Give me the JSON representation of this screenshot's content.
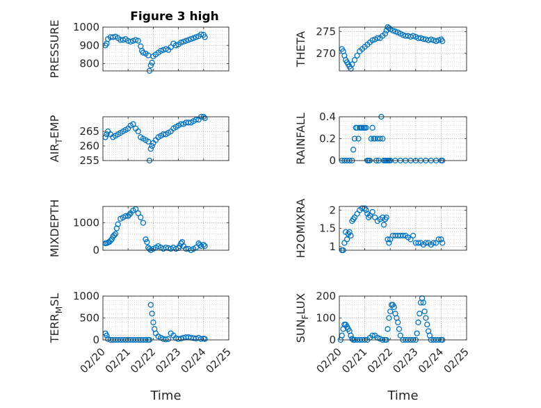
{
  "figure": {
    "title": "Figure 3 high",
    "xlabel": "Time"
  },
  "colors": {
    "marker": "#0072BD",
    "grid": "#b4b4b4",
    "axis": "#262626"
  },
  "chart_data": [
    {
      "type": "scatter",
      "ylabel": "PRESSURE",
      "title": "Figure 3 high",
      "xlim": [
        20,
        25
      ],
      "ylim": [
        760,
        1000
      ],
      "yticks": [
        800,
        900,
        1000
      ],
      "xticks": [
        20,
        21,
        22,
        23,
        24,
        25
      ],
      "xticklabels": [
        "02/20",
        "02/21",
        "02/22",
        "02/23",
        "02/24",
        "02/25"
      ],
      "x": [
        20.1,
        20.15,
        20.2,
        20.3,
        20.4,
        20.5,
        20.6,
        20.7,
        20.8,
        20.9,
        21.0,
        21.1,
        21.2,
        21.3,
        21.4,
        21.5,
        21.55,
        21.6,
        21.7,
        21.8,
        21.85,
        21.9,
        21.95,
        22.0,
        22.1,
        22.2,
        22.3,
        22.4,
        22.5,
        22.6,
        22.7,
        22.8,
        22.9,
        23.0,
        23.1,
        23.2,
        23.3,
        23.4,
        23.5,
        23.6,
        23.7,
        23.8,
        23.9,
        24.0,
        24.05
      ],
      "y": [
        900,
        910,
        935,
        945,
        945,
        948,
        940,
        930,
        930,
        935,
        925,
        920,
        925,
        930,
        925,
        895,
        870,
        860,
        855,
        845,
        760,
        790,
        805,
        840,
        850,
        860,
        870,
        875,
        880,
        875,
        890,
        910,
        900,
        905,
        915,
        920,
        925,
        930,
        935,
        940,
        945,
        950,
        960,
        958,
        945
      ]
    },
    {
      "type": "scatter",
      "ylabel": "THETA",
      "xlim": [
        20,
        25
      ],
      "ylim": [
        266,
        276
      ],
      "yticks": [
        270,
        275
      ],
      "xticks": [
        20,
        21,
        22,
        23,
        24,
        25
      ],
      "xticklabels": [
        "02/20",
        "02/21",
        "02/22",
        "02/23",
        "02/24",
        "02/25"
      ],
      "x": [
        20.1,
        20.15,
        20.2,
        20.25,
        20.3,
        20.35,
        20.4,
        20.45,
        20.5,
        20.6,
        20.7,
        20.8,
        20.9,
        21.0,
        21.1,
        21.2,
        21.3,
        21.4,
        21.5,
        21.6,
        21.7,
        21.8,
        21.85,
        21.9,
        21.95,
        22.0,
        22.1,
        22.2,
        22.3,
        22.4,
        22.5,
        22.6,
        22.7,
        22.8,
        22.9,
        23.0,
        23.1,
        23.2,
        23.3,
        23.4,
        23.5,
        23.6,
        23.7,
        23.8,
        23.9,
        24.0,
        24.05
      ],
      "y": [
        271,
        270.5,
        269.5,
        268.5,
        268,
        267.5,
        267,
        266.5,
        267.5,
        268.5,
        269.5,
        270.5,
        271,
        271.5,
        272,
        272.5,
        273,
        273.2,
        273.5,
        273.5,
        274,
        274.5,
        275.2,
        276,
        275.8,
        275.5,
        275.2,
        275,
        274.8,
        274.5,
        274.2,
        274,
        274,
        273.8,
        274,
        273.8,
        273.5,
        273.5,
        273.3,
        273.2,
        273,
        273.2,
        273,
        272.8,
        273,
        273.2,
        272.8
      ]
    },
    {
      "type": "scatter",
      "ylabel": "AIR_TEMP",
      "xlim": [
        20,
        25
      ],
      "ylim": [
        255,
        270
      ],
      "yticks": [
        255,
        260,
        265
      ],
      "xticks": [
        20,
        21,
        22,
        23,
        24,
        25
      ],
      "xticklabels": [
        "02/20",
        "02/21",
        "02/22",
        "02/23",
        "02/24",
        "02/25"
      ],
      "x": [
        20.1,
        20.15,
        20.2,
        20.3,
        20.4,
        20.5,
        20.6,
        20.7,
        20.8,
        20.9,
        21.0,
        21.1,
        21.2,
        21.3,
        21.4,
        21.5,
        21.6,
        21.7,
        21.8,
        21.85,
        21.9,
        21.95,
        22.0,
        22.1,
        22.2,
        22.3,
        22.4,
        22.5,
        22.6,
        22.7,
        22.8,
        22.9,
        23.0,
        23.1,
        23.2,
        23.3,
        23.4,
        23.5,
        23.6,
        23.7,
        23.8,
        23.9,
        24.0,
        24.05
      ],
      "y": [
        263,
        264,
        265,
        264,
        263,
        263.5,
        264,
        264.5,
        265,
        265.5,
        266,
        267,
        267.5,
        266,
        265,
        263,
        262.5,
        262,
        261.5,
        255,
        259,
        260,
        261,
        262,
        263,
        263.5,
        264,
        264,
        264.5,
        265,
        266,
        266.5,
        267,
        267.5,
        267.5,
        268,
        268,
        268,
        268.5,
        269,
        269,
        270,
        270,
        269.5
      ]
    },
    {
      "type": "scatter",
      "ylabel": "RAINFALL",
      "xlim": [
        20,
        25
      ],
      "ylim": [
        0,
        0.4
      ],
      "yticks": [
        0,
        0.2,
        0.4
      ],
      "xticks": [
        20,
        21,
        22,
        23,
        24,
        25
      ],
      "xticklabels": [
        "02/20",
        "02/21",
        "02/22",
        "02/23",
        "02/24",
        "02/25"
      ],
      "x": [
        20.1,
        20.2,
        20.3,
        20.4,
        20.5,
        20.55,
        20.6,
        20.65,
        20.7,
        20.75,
        20.8,
        20.85,
        20.9,
        20.95,
        21.0,
        21.05,
        21.1,
        21.15,
        21.2,
        21.25,
        21.3,
        21.35,
        21.4,
        21.45,
        21.5,
        21.55,
        21.6,
        21.65,
        21.7,
        21.75,
        21.8,
        21.85,
        21.9,
        21.95,
        22.0,
        22.2,
        22.4,
        22.6,
        22.8,
        23.0,
        23.2,
        23.4,
        23.6,
        23.8,
        24.0,
        24.05
      ],
      "y": [
        0,
        0,
        0,
        0,
        0,
        0.1,
        0.2,
        0.3,
        0.3,
        0.2,
        0.3,
        0.3,
        0.3,
        0.3,
        0.3,
        0.3,
        0,
        0,
        0,
        0.2,
        0.3,
        0.2,
        0.2,
        0,
        0.2,
        0,
        0.2,
        0.4,
        0.2,
        0,
        0,
        0,
        0,
        0,
        0,
        0,
        0,
        0,
        0,
        0,
        0,
        0,
        0,
        0,
        0,
        0
      ]
    },
    {
      "type": "scatter",
      "ylabel": "MIXDEPTH",
      "xlim": [
        20,
        25
      ],
      "ylim": [
        0,
        1600
      ],
      "yticks": [
        0,
        1000
      ],
      "xticks": [
        20,
        21,
        22,
        23,
        24,
        25
      ],
      "xticklabels": [
        "02/20",
        "02/21",
        "02/22",
        "02/23",
        "02/24",
        "02/25"
      ],
      "x": [
        20.1,
        20.15,
        20.2,
        20.25,
        20.3,
        20.35,
        20.4,
        20.45,
        20.5,
        20.55,
        20.6,
        20.7,
        20.8,
        20.9,
        21.0,
        21.05,
        21.1,
        21.2,
        21.3,
        21.4,
        21.5,
        21.6,
        21.7,
        21.75,
        21.8,
        21.85,
        21.9,
        22.0,
        22.1,
        22.2,
        22.3,
        22.4,
        22.5,
        22.6,
        22.7,
        22.8,
        22.9,
        23.0,
        23.05,
        23.1,
        23.15,
        23.2,
        23.3,
        23.4,
        23.5,
        23.6,
        23.7,
        23.8,
        23.85,
        23.9,
        24.0,
        24.05
      ],
      "y": [
        250,
        260,
        280,
        300,
        350,
        400,
        500,
        550,
        600,
        800,
        950,
        1150,
        1200,
        1250,
        1250,
        1300,
        1350,
        1450,
        1500,
        1350,
        1200,
        1000,
        400,
        300,
        100,
        50,
        0,
        50,
        100,
        150,
        100,
        50,
        100,
        80,
        50,
        100,
        50,
        80,
        150,
        250,
        300,
        150,
        50,
        50,
        0,
        50,
        100,
        250,
        200,
        150,
        200,
        150
      ]
    },
    {
      "type": "scatter",
      "ylabel": "H2OMIXRA",
      "xlim": [
        20,
        25
      ],
      "ylim": [
        0.9,
        2.1
      ],
      "yticks": [
        1,
        1.5,
        2
      ],
      "xticks": [
        20,
        21,
        22,
        23,
        24,
        25
      ],
      "xticklabels": [
        "02/20",
        "02/21",
        "02/22",
        "02/23",
        "02/24",
        "02/25"
      ],
      "x": [
        20.1,
        20.15,
        20.2,
        20.25,
        20.3,
        20.35,
        20.4,
        20.45,
        20.5,
        20.55,
        20.6,
        20.7,
        20.8,
        20.9,
        21.0,
        21.05,
        21.1,
        21.15,
        21.2,
        21.3,
        21.4,
        21.5,
        21.6,
        21.7,
        21.75,
        21.8,
        21.85,
        21.9,
        21.95,
        22.0,
        22.1,
        22.2,
        22.3,
        22.4,
        22.5,
        22.6,
        22.7,
        22.8,
        22.9,
        23.0,
        23.1,
        23.2,
        23.3,
        23.4,
        23.5,
        23.6,
        23.7,
        23.8,
        23.9,
        24.0,
        24.05
      ],
      "y": [
        0.9,
        0.9,
        1.1,
        1.4,
        1.2,
        1.35,
        1.4,
        1.3,
        1.7,
        1.75,
        1.8,
        1.9,
        2.0,
        2.05,
        2.05,
        2.0,
        1.9,
        1.8,
        1.85,
        1.95,
        1.8,
        1.7,
        1.75,
        1.8,
        1.6,
        1.75,
        1.8,
        1.2,
        1.1,
        1.2,
        1.3,
        1.3,
        1.3,
        1.3,
        1.3,
        1.3,
        1.25,
        1.2,
        1.3,
        1.1,
        1.1,
        1.1,
        1.05,
        1.1,
        1.1,
        1.05,
        1.1,
        1.1,
        1.2,
        1.2,
        1.1
      ]
    },
    {
      "type": "scatter",
      "ylabel": "TERR_MSL",
      "xlim": [
        20,
        25
      ],
      "ylim": [
        0,
        1000
      ],
      "yticks": [
        0,
        500,
        1000
      ],
      "xticks": [
        20,
        21,
        22,
        23,
        24,
        25
      ],
      "xticklabels": [
        "02/20",
        "02/21",
        "02/22",
        "02/23",
        "02/24",
        "02/25"
      ],
      "x": [
        20.1,
        20.15,
        20.2,
        20.3,
        20.4,
        20.5,
        20.6,
        20.7,
        20.8,
        20.9,
        21.0,
        21.1,
        21.2,
        21.3,
        21.4,
        21.5,
        21.6,
        21.7,
        21.8,
        21.85,
        21.9,
        21.95,
        22.0,
        22.05,
        22.1,
        22.2,
        22.3,
        22.4,
        22.5,
        22.6,
        22.7,
        22.8,
        22.9,
        23.0,
        23.1,
        23.2,
        23.3,
        23.4,
        23.5,
        23.6,
        23.7,
        23.8,
        23.9,
        24.0,
        24.05
      ],
      "y": [
        150,
        100,
        20,
        0,
        0,
        0,
        0,
        0,
        0,
        0,
        0,
        0,
        0,
        0,
        0,
        0,
        0,
        0,
        0,
        0,
        800,
        600,
        400,
        250,
        150,
        80,
        50,
        20,
        10,
        20,
        150,
        100,
        40,
        20,
        30,
        50,
        60,
        60,
        50,
        40,
        30,
        50,
        20,
        30,
        20
      ]
    },
    {
      "type": "scatter",
      "ylabel": "SUN_FLUX",
      "xlim": [
        20,
        25
      ],
      "ylim": [
        0,
        200
      ],
      "yticks": [
        0,
        100,
        200
      ],
      "xticks": [
        20,
        21,
        22,
        23,
        24,
        25
      ],
      "xticklabels": [
        "02/20",
        "02/21",
        "02/22",
        "02/23",
        "02/24",
        "02/25"
      ],
      "x": [
        20.05,
        20.1,
        20.15,
        20.2,
        20.25,
        20.3,
        20.35,
        20.4,
        20.45,
        20.5,
        20.55,
        20.6,
        20.7,
        20.8,
        20.9,
        21.0,
        21.1,
        21.2,
        21.3,
        21.4,
        21.5,
        21.6,
        21.7,
        21.8,
        21.85,
        21.9,
        21.95,
        22.0,
        22.05,
        22.1,
        22.15,
        22.2,
        22.25,
        22.3,
        22.35,
        22.4,
        22.5,
        22.6,
        22.7,
        22.8,
        22.9,
        23.0,
        23.05,
        23.1,
        23.15,
        23.2,
        23.25,
        23.3,
        23.35,
        23.4,
        23.45,
        23.5,
        23.55,
        23.6,
        23.7,
        23.8,
        23.9,
        24.0,
        24.05
      ],
      "y": [
        0,
        20,
        50,
        70,
        70,
        60,
        50,
        40,
        20,
        5,
        0,
        0,
        0,
        0,
        0,
        0,
        0,
        10,
        20,
        20,
        10,
        5,
        0,
        0,
        0,
        50,
        100,
        130,
        160,
        160,
        150,
        120,
        100,
        80,
        50,
        20,
        0,
        0,
        0,
        0,
        0,
        0,
        30,
        80,
        120,
        170,
        190,
        170,
        130,
        100,
        70,
        40,
        20,
        0,
        0,
        0,
        0,
        0,
        0
      ]
    }
  ]
}
